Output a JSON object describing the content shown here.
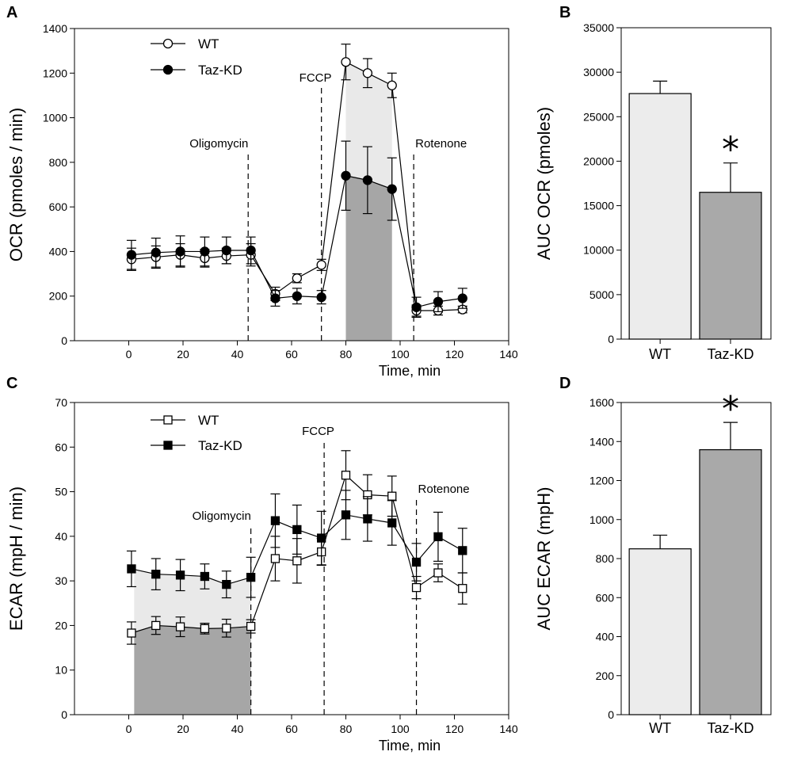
{
  "colors": {
    "light_fill": "#e9e9e9",
    "dark_fill": "#a6a6a6",
    "bar_wt": "#ececec",
    "bar_kd": "#a9a9a9",
    "axis": "#000000"
  },
  "chart_data": [
    {
      "id": "A",
      "panel_label": "A",
      "type": "line",
      "ylabel": "OCR (pmoles / min)",
      "xlabel": "Time, min",
      "xlim": [
        -20,
        140
      ],
      "ylim": [
        0,
        1400
      ],
      "xticks": [
        0,
        20,
        40,
        60,
        80,
        100,
        120,
        140
      ],
      "yticks": [
        0,
        200,
        400,
        600,
        800,
        1000,
        1200,
        1400
      ],
      "marker": "circle",
      "legend": [
        "WT",
        "Taz-KD"
      ],
      "x": [
        1,
        10,
        19,
        28,
        36,
        45,
        54,
        62,
        71,
        80,
        88,
        97,
        106,
        114,
        123
      ],
      "series": [
        {
          "name": "WT",
          "filled": false,
          "values": [
            365,
            375,
            385,
            370,
            380,
            385,
            210,
            280,
            340,
            1250,
            1200,
            1145,
            135,
            135,
            140
          ],
          "errors": [
            50,
            50,
            50,
            40,
            35,
            50,
            30,
            20,
            25,
            80,
            65,
            55,
            25,
            20,
            15
          ]
        },
        {
          "name": "Taz-KD",
          "filled": true,
          "values": [
            385,
            395,
            400,
            400,
            405,
            405,
            190,
            200,
            195,
            740,
            720,
            680,
            150,
            175,
            190
          ],
          "errors": [
            65,
            65,
            70,
            65,
            60,
            60,
            35,
            35,
            30,
            155,
            150,
            140,
            45,
            45,
            45
          ]
        }
      ],
      "annotations": [
        {
          "label": "Oligomycin",
          "x": 44
        },
        {
          "label": "FCCP",
          "x": 71
        },
        {
          "label": "Rotenone",
          "x": 105
        }
      ],
      "shaded_x_range": [
        80,
        97
      ],
      "shaded_light_between": [
        "Taz-KD",
        "WT"
      ],
      "shaded_dark_under": "Taz-KD"
    },
    {
      "id": "B",
      "panel_label": "B",
      "type": "bar",
      "ylabel": "AUC OCR (pmoles)",
      "categories": [
        "WT",
        "Taz-KD"
      ],
      "values": [
        27600,
        16500
      ],
      "errors": [
        1400,
        3300
      ],
      "ylim": [
        0,
        35000
      ],
      "yticks": [
        0,
        5000,
        10000,
        15000,
        20000,
        25000,
        30000,
        35000
      ],
      "significance": [
        "",
        "*"
      ]
    },
    {
      "id": "C",
      "panel_label": "C",
      "type": "line",
      "ylabel": "ECAR (mpH / min)",
      "xlabel": "Time, min",
      "xlim": [
        -20,
        140
      ],
      "ylim": [
        0,
        70
      ],
      "xticks": [
        0,
        20,
        40,
        60,
        80,
        100,
        120,
        140
      ],
      "yticks": [
        0,
        10,
        20,
        30,
        40,
        50,
        60,
        70
      ],
      "marker": "square",
      "legend": [
        "WT",
        "Taz-KD"
      ],
      "x": [
        1,
        10,
        19,
        28,
        36,
        45,
        54,
        62,
        71,
        80,
        88,
        97,
        106,
        114,
        123
      ],
      "series": [
        {
          "name": "WT",
          "filled": false,
          "values": [
            18.3,
            20.0,
            19.7,
            19.3,
            19.4,
            19.8,
            35.0,
            34.5,
            36.5,
            53.7,
            49.3,
            49.0,
            28.5,
            31.8,
            28.3
          ],
          "errors": [
            2.5,
            2.0,
            2.2,
            1.2,
            2.0,
            1.5,
            5.0,
            5.0,
            3.0,
            5.5,
            4.5,
            4.5,
            2.5,
            2.0,
            3.5
          ]
        },
        {
          "name": "Taz-KD",
          "filled": true,
          "values": [
            32.7,
            31.5,
            31.3,
            31.0,
            29.2,
            30.8,
            43.5,
            41.5,
            39.6,
            44.8,
            43.9,
            43.0,
            34.2,
            39.9,
            36.8
          ],
          "errors": [
            4.0,
            3.5,
            3.5,
            2.8,
            3.0,
            4.5,
            6.0,
            5.5,
            6.0,
            5.5,
            5.0,
            5.0,
            4.2,
            5.5,
            5.0
          ]
        }
      ],
      "annotations": [
        {
          "label": "Oligomycin",
          "x": 45
        },
        {
          "label": "FCCP",
          "x": 72
        },
        {
          "label": "Rotenone",
          "x": 106
        }
      ],
      "shaded_x_range": [
        2,
        45
      ],
      "shaded_light_between": [
        "WT",
        "Taz-KD"
      ],
      "shaded_dark_under": "WT"
    },
    {
      "id": "D",
      "panel_label": "D",
      "type": "bar",
      "ylabel": "AUC ECAR (mpH)",
      "categories": [
        "WT",
        "Taz-KD"
      ],
      "values": [
        850,
        1358
      ],
      "errors": [
        70,
        140
      ],
      "ylim": [
        0,
        1600
      ],
      "yticks": [
        0,
        200,
        400,
        600,
        800,
        1000,
        1200,
        1400,
        1600
      ],
      "significance": [
        "",
        "*"
      ]
    }
  ]
}
